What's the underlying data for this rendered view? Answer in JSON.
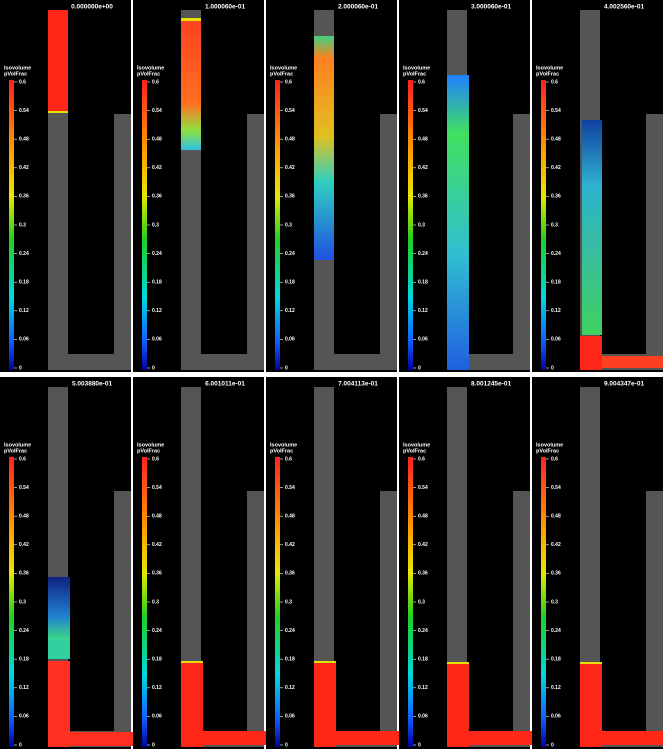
{
  "panels": [
    {
      "time": "0.000000e+00"
    },
    {
      "time": "1.000060e-01"
    },
    {
      "time": "2.000060e-01"
    },
    {
      "time": "3.000060e-01"
    },
    {
      "time": "4.002560e-01"
    },
    {
      "time": "5.003880e-01"
    },
    {
      "time": "6.001011e-01"
    },
    {
      "time": "7.004113e-01"
    },
    {
      "time": "8.001245e-01"
    },
    {
      "time": "9.004347e-01"
    }
  ],
  "colorbar": {
    "title": "Isovolume",
    "subtitle": "pVolFrac",
    "ticks": [
      "0.6",
      "0.54",
      "0.48",
      "0.42",
      "0.36",
      "0.3",
      "0.24",
      "0.18",
      "0.12",
      "0.06",
      "0"
    ]
  }
}
